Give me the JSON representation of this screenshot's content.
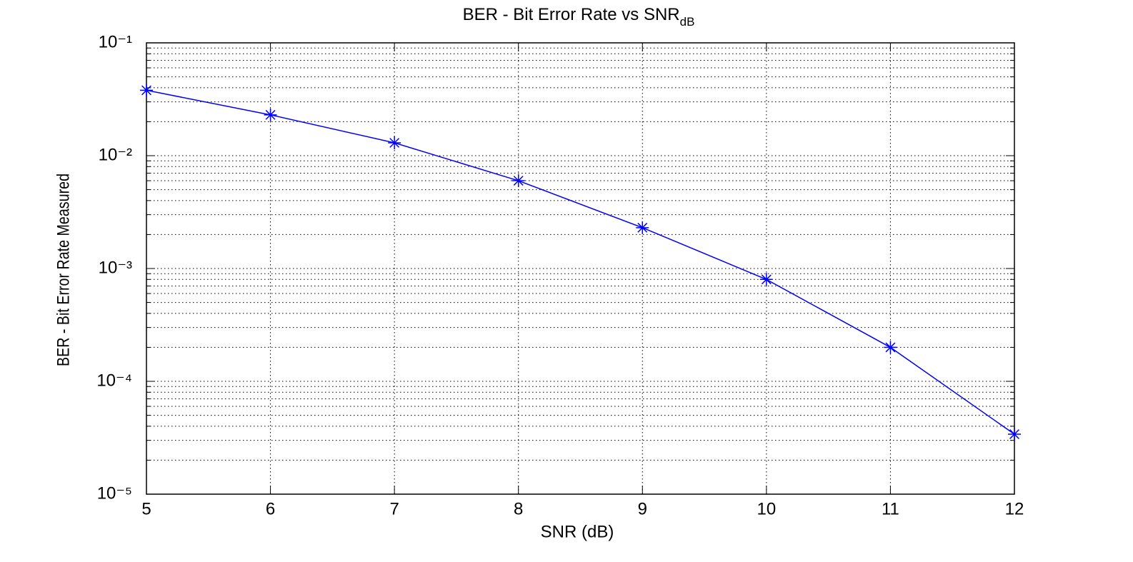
{
  "chart_data": {
    "type": "line",
    "title": "BER - Bit Error Rate vs SNR",
    "title_subscript": "dB",
    "x_label": "SNR (dB)",
    "y_label": "BER - Bit Error Rate Measured",
    "x": [
      5,
      6,
      7,
      8,
      9,
      10,
      11,
      12
    ],
    "series": [
      {
        "name": "BER",
        "color": "#0000ff",
        "marker": "*",
        "values": [
          0.038,
          0.023,
          0.013,
          0.006,
          0.0023,
          0.0008,
          0.0002,
          3.4e-05
        ]
      }
    ],
    "xlim": [
      5,
      12
    ],
    "xticks": [
      5,
      6,
      7,
      8,
      9,
      10,
      11,
      12
    ],
    "ylim": [
      1e-05,
      0.1
    ],
    "log_y": true,
    "yticks": [
      {
        "value": 1e-05,
        "label": "10⁻⁵"
      },
      {
        "value": 0.0001,
        "label": "10⁻⁴"
      },
      {
        "value": 0.001,
        "label": "10⁻³"
      },
      {
        "value": 0.01,
        "label": "10⁻²"
      },
      {
        "value": 0.1,
        "label": "10⁻¹"
      }
    ],
    "grid": true,
    "minor_grid": true,
    "show_legend": false
  }
}
